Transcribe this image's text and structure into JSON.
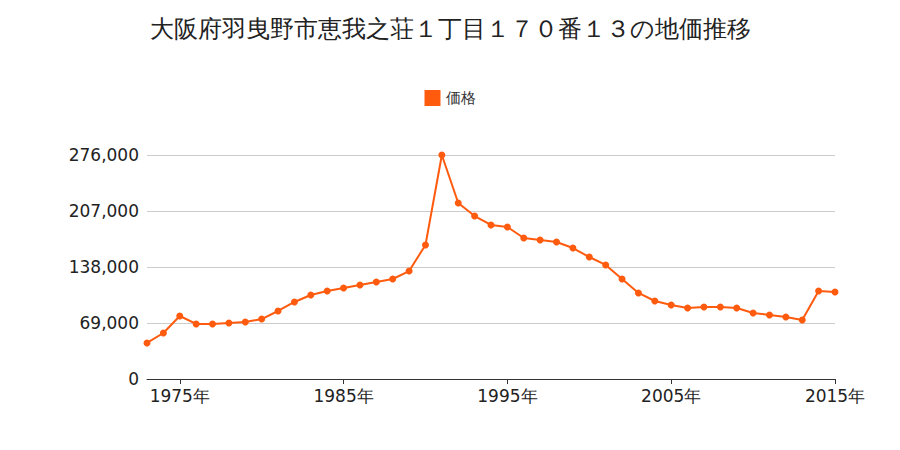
{
  "chart_data": {
    "type": "line",
    "title": "大阪府羽曳野市恵我之荘１丁目１７０番１３の地価推移",
    "x": [
      1973,
      1974,
      1975,
      1976,
      1977,
      1978,
      1979,
      1980,
      1981,
      1982,
      1983,
      1984,
      1985,
      1986,
      1987,
      1988,
      1989,
      1990,
      1991,
      1992,
      1993,
      1994,
      1995,
      1996,
      1997,
      1998,
      1999,
      2000,
      2001,
      2002,
      2003,
      2004,
      2005,
      2006,
      2007,
      2008,
      2009,
      2010,
      2011,
      2012,
      2013,
      2014,
      2015
    ],
    "series": [
      {
        "name": "価格",
        "color": "#ff5b0f",
        "marker": "circle",
        "line_style": "solid",
        "values": [
          44400,
          56700,
          77600,
          67800,
          67800,
          69000,
          70200,
          73900,
          83800,
          94900,
          103500,
          108400,
          112100,
          115800,
          119500,
          123200,
          133000,
          165100,
          276000,
          216900,
          200800,
          189800,
          187300,
          173700,
          171300,
          168800,
          161400,
          150300,
          140500,
          123200,
          106000,
          96100,
          91200,
          87500,
          88700,
          88700,
          87500,
          81300,
          78900,
          76400,
          72700,
          108400,
          107200
        ]
      }
    ],
    "xlim": [
      1973,
      2015
    ],
    "xticks": [
      {
        "value": 1975,
        "label": "1975年"
      },
      {
        "value": 1985,
        "label": "1985年"
      },
      {
        "value": 1995,
        "label": "1995年"
      },
      {
        "value": 2005,
        "label": "2005年"
      },
      {
        "value": 2015,
        "label": "2015年"
      }
    ],
    "ylim": [
      0,
      276000
    ],
    "yticks": [
      0,
      {
        "value": 69000,
        "label": "69,000"
      },
      {
        "value": 138000,
        "label": "138,000"
      },
      {
        "value": 207000,
        "label": "207,000"
      },
      {
        "value": 276000,
        "label": "276,000"
      }
    ],
    "grid": true,
    "legend": "top"
  }
}
